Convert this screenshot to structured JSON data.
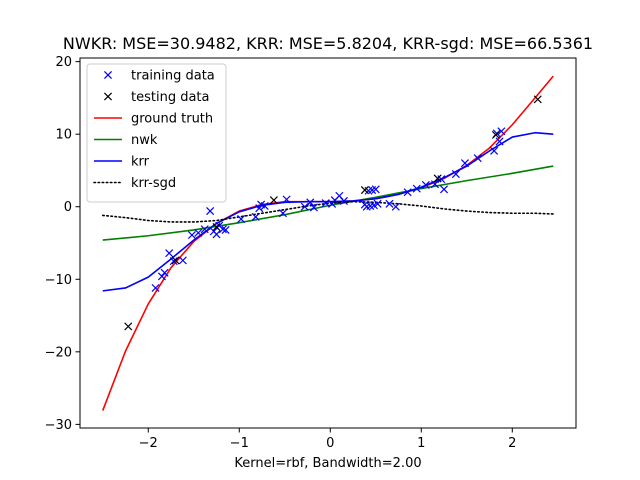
{
  "chart_data": {
    "type": "scatter",
    "title": "NWKR: MSE=30.9482, KRR: MSE=5.8204, KRR-sgd: MSE=66.5361",
    "xlabel": "Kernel=rbf, Bandwidth=2.00",
    "ylabel": "",
    "xlim": [
      -2.75,
      2.7
    ],
    "ylim": [
      -30.5,
      20.5
    ],
    "xticks": [
      -2,
      -1,
      0,
      1,
      2
    ],
    "xtick_labels": [
      "−2",
      "−1",
      "0",
      "1",
      "2"
    ],
    "yticks": [
      -30,
      -20,
      -10,
      0,
      10,
      20
    ],
    "ytick_labels": [
      "−30",
      "−20",
      "−10",
      "0",
      "10",
      "20"
    ],
    "grid": false,
    "legend_position": "top-left",
    "series": [
      {
        "name": "training data",
        "kind": "scatter",
        "marker": "x",
        "color": "#0000ff",
        "points": [
          [
            -1.92,
            -11.2
          ],
          [
            -1.85,
            -9.6
          ],
          [
            -1.82,
            -9.1
          ],
          [
            -1.77,
            -6.4
          ],
          [
            -1.72,
            -7.5
          ],
          [
            -1.62,
            -7.4
          ],
          [
            -1.52,
            -3.9
          ],
          [
            -1.45,
            -3.6
          ],
          [
            -1.38,
            -3.1
          ],
          [
            -1.32,
            -0.6
          ],
          [
            -1.28,
            -3.4
          ],
          [
            -1.25,
            -3.8
          ],
          [
            -1.22,
            -2.6
          ],
          [
            -1.18,
            -3.1
          ],
          [
            -1.15,
            -3.2
          ],
          [
            -0.98,
            -1.7
          ],
          [
            -0.82,
            -1.4
          ],
          [
            -0.78,
            -0.2
          ],
          [
            -0.76,
            0.3
          ],
          [
            -0.72,
            0.1
          ],
          [
            -0.52,
            -0.9
          ],
          [
            -0.48,
            1.0
          ],
          [
            -0.28,
            0.0
          ],
          [
            -0.22,
            0.6
          ],
          [
            -0.18,
            -0.1
          ],
          [
            -0.05,
            0.5
          ],
          [
            0.02,
            0.4
          ],
          [
            0.05,
            0.9
          ],
          [
            0.1,
            1.5
          ],
          [
            0.15,
            0.8
          ],
          [
            0.38,
            0.3
          ],
          [
            0.4,
            0.0
          ],
          [
            0.42,
            2.2
          ],
          [
            0.44,
            0.1
          ],
          [
            0.46,
            2.3
          ],
          [
            0.48,
            0.2
          ],
          [
            0.5,
            2.4
          ],
          [
            0.52,
            0.4
          ],
          [
            0.65,
            0.4
          ],
          [
            0.72,
            0.0
          ],
          [
            0.85,
            2.0
          ],
          [
            0.95,
            2.5
          ],
          [
            1.05,
            3.0
          ],
          [
            1.15,
            3.1
          ],
          [
            1.22,
            3.8
          ],
          [
            1.25,
            2.4
          ],
          [
            1.38,
            4.5
          ],
          [
            1.48,
            6.0
          ],
          [
            1.62,
            6.7
          ],
          [
            1.8,
            7.7
          ],
          [
            1.83,
            10.1
          ],
          [
            1.86,
            9.0
          ],
          [
            1.88,
            10.4
          ]
        ]
      },
      {
        "name": "testing data",
        "kind": "scatter",
        "marker": "x",
        "color": "#000000",
        "points": [
          [
            -2.22,
            -16.5
          ],
          [
            -1.7,
            -7.4
          ],
          [
            -1.25,
            -2.8
          ],
          [
            -0.62,
            0.9
          ],
          [
            0.38,
            2.3
          ],
          [
            1.18,
            3.9
          ],
          [
            1.82,
            9.9
          ],
          [
            2.28,
            14.8
          ]
        ]
      },
      {
        "name": "ground truth",
        "kind": "line",
        "color": "#ff0000",
        "style": "solid",
        "x": [
          -2.5,
          -2.25,
          -2.0,
          -1.75,
          -1.5,
          -1.25,
          -1.0,
          -0.75,
          -0.5,
          -0.25,
          0.0,
          0.25,
          0.5,
          0.75,
          1.0,
          1.25,
          1.5,
          1.75,
          2.0,
          2.25,
          2.45
        ],
        "y": [
          -28.1,
          -19.9,
          -13.4,
          -8.4,
          -4.8,
          -2.3,
          -0.6,
          0.3,
          0.7,
          0.7,
          0.7,
          0.8,
          1.1,
          1.7,
          2.6,
          3.9,
          5.7,
          8.1,
          11.3,
          15.0,
          18.0
        ]
      },
      {
        "name": "nwk",
        "kind": "line",
        "color": "#008000",
        "style": "solid",
        "x": [
          -2.5,
          -2.0,
          -1.5,
          -1.0,
          -0.5,
          0.0,
          0.5,
          1.0,
          1.5,
          2.0,
          2.45
        ],
        "y": [
          -4.6,
          -4.0,
          -3.2,
          -2.2,
          -1.1,
          0.2,
          1.3,
          2.5,
          3.6,
          4.6,
          5.6
        ]
      },
      {
        "name": "krr",
        "kind": "line",
        "color": "#0000ff",
        "style": "solid",
        "x": [
          -2.5,
          -2.25,
          -2.0,
          -1.75,
          -1.5,
          -1.25,
          -1.0,
          -0.75,
          -0.5,
          -0.25,
          0.0,
          0.25,
          0.5,
          0.75,
          1.0,
          1.25,
          1.5,
          1.75,
          2.0,
          2.25,
          2.45
        ],
        "y": [
          -11.6,
          -11.2,
          -9.7,
          -7.2,
          -4.6,
          -2.3,
          -0.7,
          0.2,
          0.6,
          0.7,
          0.7,
          0.8,
          1.1,
          1.7,
          2.7,
          4.0,
          5.6,
          7.7,
          9.6,
          10.2,
          10.0
        ]
      },
      {
        "name": "krr-sgd",
        "kind": "line",
        "color": "#000000",
        "style": "dotted",
        "x": [
          -2.5,
          -2.25,
          -2.0,
          -1.75,
          -1.5,
          -1.25,
          -1.0,
          -0.75,
          -0.5,
          -0.25,
          0.0,
          0.25,
          0.5,
          0.75,
          1.0,
          1.25,
          1.5,
          1.75,
          2.0,
          2.25,
          2.45
        ],
        "y": [
          -1.2,
          -1.5,
          -1.9,
          -2.1,
          -2.1,
          -1.9,
          -1.4,
          -0.9,
          -0.4,
          0.1,
          0.5,
          0.7,
          0.6,
          0.4,
          0.1,
          -0.3,
          -0.6,
          -0.8,
          -0.9,
          -0.9,
          -1.0
        ]
      }
    ]
  }
}
